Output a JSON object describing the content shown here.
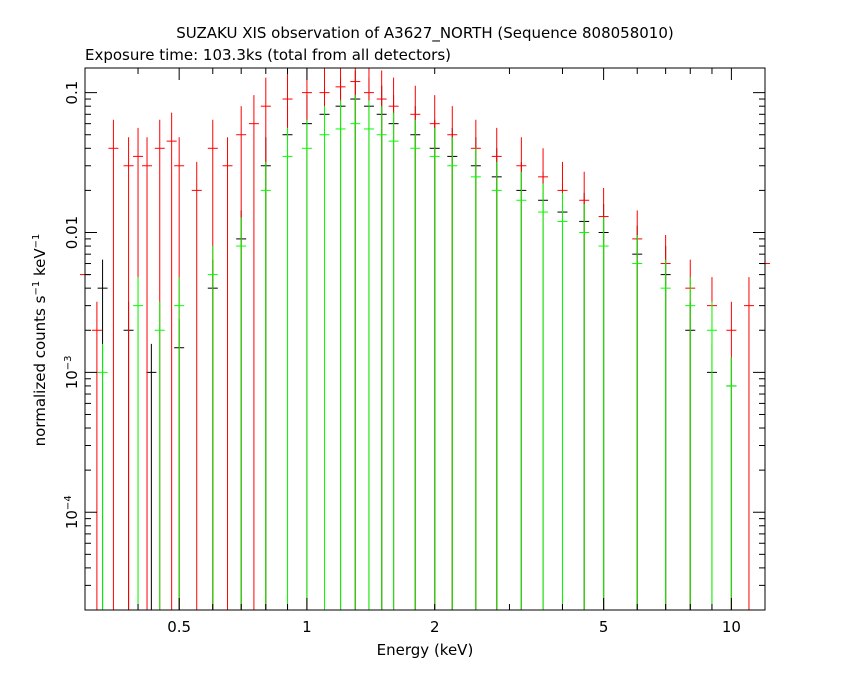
{
  "chart_data": {
    "type": "scatter",
    "title": "SUZAKU XIS observation of A3627_NORTH (Sequence 808058010)",
    "subtitle": "Exposure time: 103.3ks (total from all detectors)",
    "xlabel": "Energy (keV)",
    "ylabel": {
      "prefix": "normalized counts s",
      "sup1": "−1",
      "mid": " keV",
      "sup2": "−1"
    },
    "x_scale": "log",
    "y_scale": "log",
    "xlim": [
      0.3,
      12
    ],
    "ylim": [
      2e-05,
      0.15
    ],
    "grid": false,
    "x_ticks": [
      {
        "value": 0.5,
        "label": "0.5"
      },
      {
        "value": 1,
        "label": "1"
      },
      {
        "value": 2,
        "label": "2"
      },
      {
        "value": 5,
        "label": "5"
      },
      {
        "value": 10,
        "label": "10"
      }
    ],
    "y_ticks": [
      {
        "value": 0.1,
        "label": "0.1",
        "sup": ""
      },
      {
        "value": 0.01,
        "label": "0.01",
        "sup": ""
      },
      {
        "value": 0.001,
        "label": "10",
        "sup": "−3"
      },
      {
        "value": 0.0001,
        "label": "10",
        "sup": "−4"
      }
    ],
    "series": [
      {
        "color": "#000000",
        "x": [
          0.33,
          0.38,
          0.43,
          0.5,
          0.6,
          0.7,
          0.8,
          0.9,
          1.0,
          1.1,
          1.2,
          1.3,
          1.4,
          1.5,
          1.6,
          1.8,
          2.0,
          2.2,
          2.5,
          2.8,
          3.2,
          3.6,
          4.0,
          4.5,
          5.0,
          6.0,
          7.0,
          8.0,
          9.0,
          10.0
        ],
        "y": [
          0.004,
          0.002,
          0.001,
          0.0015,
          0.004,
          0.009,
          0.03,
          0.05,
          0.06,
          0.07,
          0.08,
          0.09,
          0.08,
          0.07,
          0.06,
          0.05,
          0.04,
          0.035,
          0.03,
          0.025,
          0.02,
          0.017,
          0.014,
          0.012,
          0.01,
          0.007,
          0.005,
          0.002,
          0.001,
          0.0008
        ]
      },
      {
        "color": "#ff0000",
        "x": [
          0.3,
          0.32,
          0.35,
          0.38,
          0.4,
          0.42,
          0.45,
          0.48,
          0.5,
          0.55,
          0.6,
          0.65,
          0.7,
          0.75,
          0.8,
          0.9,
          1.0,
          1.1,
          1.2,
          1.3,
          1.4,
          1.5,
          1.6,
          1.8,
          2.0,
          2.2,
          2.5,
          2.8,
          3.2,
          3.6,
          4.0,
          4.5,
          5.0,
          6.0,
          7.0,
          8.0,
          9.0,
          10.0,
          11.0,
          12.0
        ],
        "y": [
          0.005,
          0.002,
          0.04,
          0.03,
          0.035,
          0.03,
          0.04,
          0.045,
          0.03,
          0.02,
          0.04,
          0.03,
          0.05,
          0.06,
          0.08,
          0.09,
          0.1,
          0.1,
          0.11,
          0.12,
          0.1,
          0.09,
          0.08,
          0.07,
          0.06,
          0.05,
          0.04,
          0.035,
          0.03,
          0.025,
          0.02,
          0.017,
          0.013,
          0.009,
          0.006,
          0.004,
          0.003,
          0.002,
          0.003,
          0.006
        ]
      },
      {
        "color": "#00ff00",
        "x": [
          0.33,
          0.4,
          0.45,
          0.5,
          0.6,
          0.7,
          0.8,
          0.9,
          1.0,
          1.1,
          1.2,
          1.3,
          1.4,
          1.5,
          1.6,
          1.8,
          2.0,
          2.2,
          2.5,
          2.8,
          3.2,
          3.6,
          4.0,
          4.5,
          5.0,
          6.0,
          7.0,
          8.0,
          9.0,
          10.0
        ],
        "y": [
          0.001,
          0.003,
          0.002,
          0.003,
          0.005,
          0.008,
          0.02,
          0.035,
          0.04,
          0.05,
          0.055,
          0.06,
          0.055,
          0.05,
          0.045,
          0.04,
          0.035,
          0.03,
          0.025,
          0.02,
          0.017,
          0.014,
          0.012,
          0.01,
          0.008,
          0.006,
          0.004,
          0.003,
          0.002,
          0.0008
        ]
      }
    ]
  }
}
